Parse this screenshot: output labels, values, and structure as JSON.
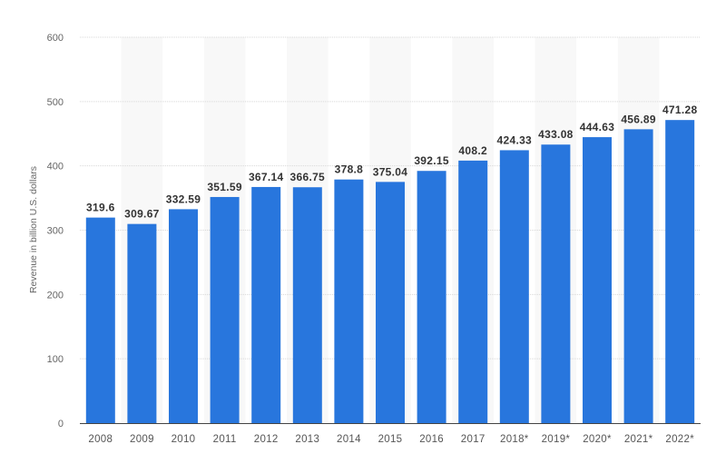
{
  "chart_data": {
    "type": "bar",
    "categories": [
      "2008",
      "2009",
      "2010",
      "2011",
      "2012",
      "2013",
      "2014",
      "2015",
      "2016",
      "2017",
      "2018*",
      "2019*",
      "2020*",
      "2021*",
      "2022*"
    ],
    "values": [
      319.6,
      309.67,
      332.59,
      351.59,
      367.14,
      366.75,
      378.8,
      375.04,
      392.15,
      408.2,
      424.33,
      433.08,
      444.63,
      456.89,
      471.28
    ],
    "title": "",
    "xlabel": "",
    "ylabel": "Revenue in billion U.S. dollars",
    "ylim": [
      0,
      600
    ],
    "yticks": [
      0,
      100,
      200,
      300,
      400,
      500,
      600
    ],
    "grid": true,
    "data_labels": true,
    "colors": {
      "bar": "#2876dd",
      "stripe": "#f8f8f8",
      "grid": "#d8d8d8",
      "axis": "#444444"
    }
  }
}
